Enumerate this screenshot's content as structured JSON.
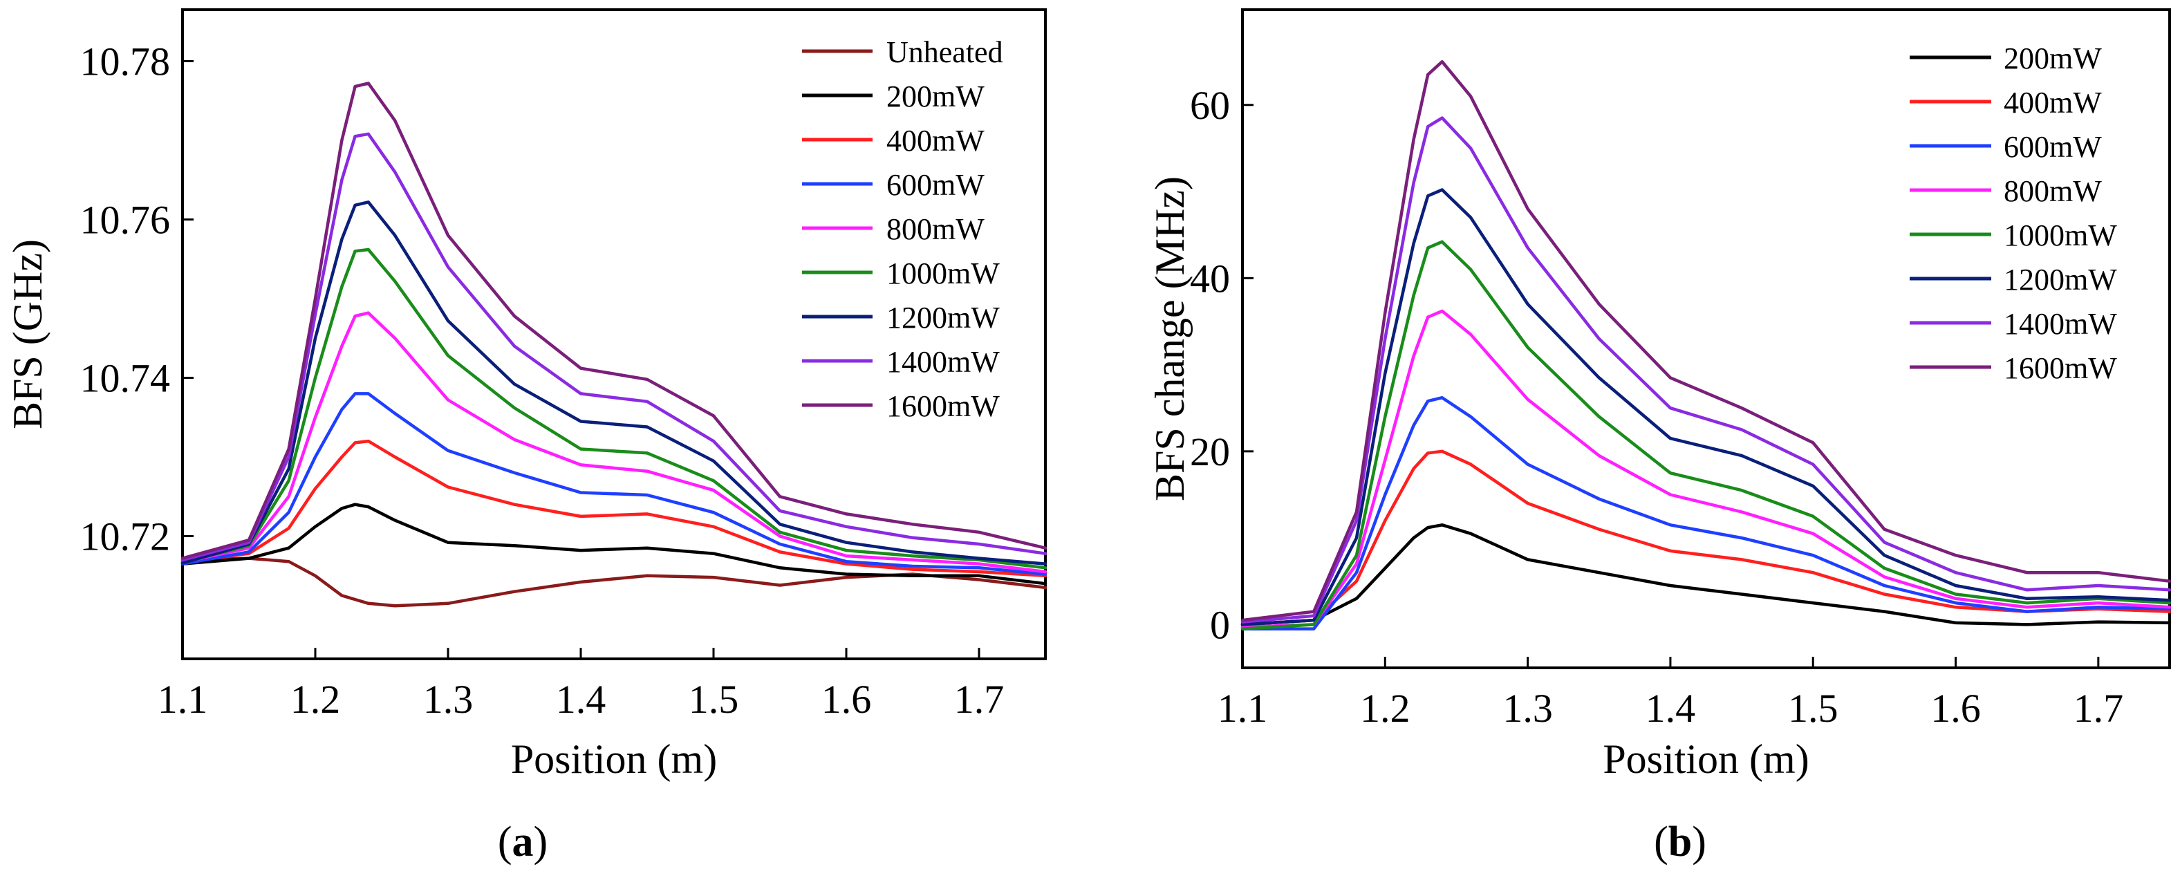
{
  "panels": [
    {
      "label_open": "(",
      "label_letter": "a",
      "label_close": ")"
    },
    {
      "label_open": "(",
      "label_letter": "b",
      "label_close": ")"
    }
  ],
  "chart_data": [
    {
      "type": "line",
      "panel": "a",
      "title": "",
      "xlabel": "Position (m)",
      "ylabel": "BFS (GHz)",
      "xlim": [
        1.1,
        1.75
      ],
      "ylim": [
        10.7045,
        10.7865
      ],
      "xticks": [
        1.1,
        1.2,
        1.3,
        1.4,
        1.5,
        1.6,
        1.7
      ],
      "xtick_labels": [
        "1.1",
        "1.2",
        "1.3",
        "1.4",
        "1.5",
        "1.6",
        "1.7"
      ],
      "yticks": [
        10.72,
        10.74,
        10.76,
        10.78
      ],
      "ytick_labels": [
        "10.72",
        "10.74",
        "10.76",
        "10.78"
      ],
      "legend_position": "top-right",
      "x": [
        1.1,
        1.15,
        1.18,
        1.2,
        1.22,
        1.23,
        1.24,
        1.26,
        1.3,
        1.35,
        1.4,
        1.45,
        1.5,
        1.55,
        1.6,
        1.65,
        1.7,
        1.75
      ],
      "series": [
        {
          "name": "Unheated",
          "color": "#8b1a1a",
          "values": [
            10.717,
            10.7172,
            10.7168,
            10.715,
            10.7125,
            10.712,
            10.7115,
            10.7112,
            10.7115,
            10.713,
            10.7142,
            10.715,
            10.7148,
            10.7138,
            10.7148,
            10.7152,
            10.7145,
            10.7135
          ]
        },
        {
          "name": "200mW",
          "color": "#000000",
          "values": [
            10.7165,
            10.7172,
            10.7185,
            10.7212,
            10.7235,
            10.724,
            10.7237,
            10.722,
            10.7192,
            10.7188,
            10.7182,
            10.7185,
            10.7178,
            10.716,
            10.7152,
            10.715,
            10.715,
            10.714
          ]
        },
        {
          "name": "400mW",
          "color": "#ff1f1f",
          "values": [
            10.7167,
            10.7178,
            10.721,
            10.726,
            10.73,
            10.7318,
            10.732,
            10.73,
            10.7262,
            10.724,
            10.7225,
            10.7228,
            10.7212,
            10.718,
            10.7165,
            10.7158,
            10.7155,
            10.715
          ]
        },
        {
          "name": "600mW",
          "color": "#1f3fff",
          "values": [
            10.7165,
            10.718,
            10.723,
            10.73,
            10.736,
            10.738,
            10.738,
            10.7355,
            10.7308,
            10.728,
            10.7255,
            10.7252,
            10.723,
            10.719,
            10.7168,
            10.7162,
            10.716,
            10.7152
          ]
        },
        {
          "name": "800mW",
          "color": "#ff1fff",
          "values": [
            10.7167,
            10.7185,
            10.725,
            10.735,
            10.744,
            10.7478,
            10.7482,
            10.745,
            10.7372,
            10.7322,
            10.729,
            10.7282,
            10.7258,
            10.72,
            10.7175,
            10.717,
            10.7165,
            10.7155
          ]
        },
        {
          "name": "1000mW",
          "color": "#1a8c1a",
          "values": [
            10.7167,
            10.7188,
            10.727,
            10.74,
            10.7515,
            10.756,
            10.7562,
            10.7522,
            10.7428,
            10.7362,
            10.731,
            10.7305,
            10.727,
            10.7205,
            10.7182,
            10.7175,
            10.717,
            10.716
          ]
        },
        {
          "name": "1200mW",
          "color": "#0a1f7a",
          "values": [
            10.7166,
            10.719,
            10.7285,
            10.745,
            10.7575,
            10.7618,
            10.7622,
            10.758,
            10.7472,
            10.7392,
            10.7345,
            10.7338,
            10.7295,
            10.7215,
            10.7192,
            10.718,
            10.7172,
            10.7165
          ]
        },
        {
          "name": "1400mW",
          "color": "#8a2be2",
          "values": [
            10.717,
            10.7192,
            10.73,
            10.748,
            10.765,
            10.7705,
            10.7708,
            10.766,
            10.754,
            10.744,
            10.738,
            10.737,
            10.732,
            10.7232,
            10.7212,
            10.7198,
            10.719,
            10.7178
          ]
        },
        {
          "name": "1600mW",
          "color": "#7a1f7a",
          "values": [
            10.7172,
            10.7195,
            10.731,
            10.75,
            10.77,
            10.7768,
            10.7772,
            10.7725,
            10.758,
            10.7478,
            10.7412,
            10.7398,
            10.7352,
            10.725,
            10.7228,
            10.7215,
            10.7205,
            10.7185
          ]
        }
      ]
    },
    {
      "type": "line",
      "panel": "b",
      "title": "",
      "xlabel": "Position (m)",
      "ylabel": "BFS change (MHz)",
      "xlim": [
        1.1,
        1.75
      ],
      "ylim": [
        -5,
        71
      ],
      "xticks": [
        1.1,
        1.2,
        1.3,
        1.4,
        1.5,
        1.6,
        1.7
      ],
      "xtick_labels": [
        "1.1",
        "1.2",
        "1.3",
        "1.4",
        "1.5",
        "1.6",
        "1.7"
      ],
      "yticks": [
        0,
        20,
        40,
        60
      ],
      "ytick_labels": [
        "0",
        "20",
        "40",
        "60"
      ],
      "legend_position": "top-right",
      "x": [
        1.1,
        1.15,
        1.18,
        1.2,
        1.22,
        1.23,
        1.24,
        1.26,
        1.3,
        1.35,
        1.4,
        1.45,
        1.5,
        1.55,
        1.6,
        1.65,
        1.7,
        1.75
      ],
      "series": [
        {
          "name": "200mW",
          "color": "#000000",
          "values": [
            0.0,
            0.5,
            3.0,
            6.5,
            10.0,
            11.2,
            11.5,
            10.5,
            7.5,
            6.0,
            4.5,
            3.5,
            2.5,
            1.5,
            0.2,
            0.0,
            0.3,
            0.2
          ]
        },
        {
          "name": "400mW",
          "color": "#ff1f1f",
          "values": [
            0.0,
            0.5,
            5.0,
            12.0,
            18.0,
            19.8,
            20.0,
            18.5,
            14.0,
            11.0,
            8.5,
            7.5,
            6.0,
            3.5,
            2.0,
            1.5,
            1.8,
            1.5
          ]
        },
        {
          "name": "600mW",
          "color": "#1f3fff",
          "values": [
            -0.5,
            -0.5,
            6.0,
            15.0,
            23.0,
            25.8,
            26.2,
            24.0,
            18.5,
            14.5,
            11.5,
            10.0,
            8.0,
            4.5,
            2.5,
            1.5,
            2.0,
            1.8
          ]
        },
        {
          "name": "800mW",
          "color": "#ff1fff",
          "values": [
            -0.3,
            0.0,
            7.0,
            19.0,
            31.0,
            35.5,
            36.2,
            33.5,
            26.0,
            19.5,
            15.0,
            13.0,
            10.5,
            5.5,
            3.0,
            2.0,
            2.5,
            2.0
          ]
        },
        {
          "name": "1000mW",
          "color": "#1a8c1a",
          "values": [
            -0.5,
            0.0,
            8.0,
            24.0,
            38.0,
            43.5,
            44.2,
            41.0,
            32.0,
            24.0,
            17.5,
            15.5,
            12.5,
            6.5,
            3.5,
            2.5,
            3.0,
            2.5
          ]
        },
        {
          "name": "1200mW",
          "color": "#0a1f7a",
          "values": [
            0.0,
            0.5,
            10.0,
            29.0,
            44.0,
            49.5,
            50.2,
            47.0,
            37.0,
            28.5,
            21.5,
            19.5,
            16.0,
            8.0,
            4.5,
            3.0,
            3.2,
            2.8
          ]
        },
        {
          "name": "1400mW",
          "color": "#8a2be2",
          "values": [
            0.3,
            1.0,
            12.0,
            33.0,
            51.0,
            57.5,
            58.5,
            55.0,
            43.5,
            33.0,
            25.0,
            22.5,
            18.5,
            9.5,
            6.0,
            4.0,
            4.5,
            4.0
          ]
        },
        {
          "name": "1600mW",
          "color": "#7a1f7a",
          "values": [
            0.5,
            1.5,
            13.0,
            36.0,
            56.0,
            63.5,
            65.0,
            61.0,
            48.0,
            37.0,
            28.5,
            25.0,
            21.0,
            11.0,
            8.0,
            6.0,
            6.0,
            5.0
          ]
        }
      ]
    }
  ]
}
